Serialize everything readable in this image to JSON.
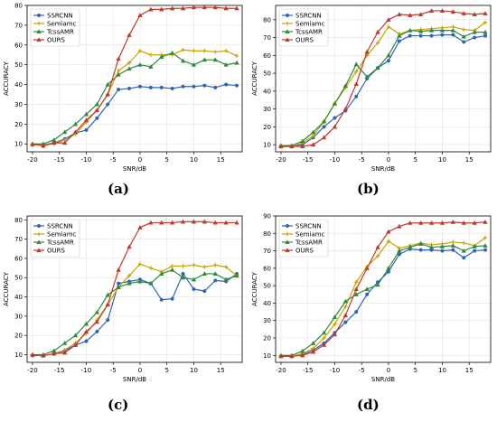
{
  "captions": [
    "(a)",
    "(b)",
    "(c)",
    "(d)"
  ],
  "colors": {
    "SSRCNN": "#2e63b8",
    "Semiamc": "#c9a400",
    "TcssAMR": "#2e8b3c",
    "OURS": "#c0392b"
  },
  "chart_data": [
    {
      "type": "line",
      "panel": "(a)",
      "xlabel": "SNR/dB",
      "ylabel": "ACCURACY",
      "xlim": [
        -21,
        19
      ],
      "ylim": [
        6,
        80
      ],
      "xticks": [
        -20,
        -15,
        -10,
        -5,
        0,
        5,
        10,
        15
      ],
      "yticks": [
        10,
        20,
        30,
        40,
        50,
        60,
        70,
        80
      ],
      "legend_position": "top-left",
      "grid": true,
      "x": [
        -20,
        -18,
        -16,
        -14,
        -12,
        -10,
        -8,
        -6,
        -4,
        -2,
        0,
        2,
        4,
        6,
        8,
        10,
        12,
        14,
        16,
        18
      ],
      "series": [
        {
          "name": "SSRCNN",
          "values": [
            9.5,
            9.5,
            10.5,
            12.5,
            15.5,
            17,
            23,
            30,
            37.5,
            38,
            39,
            38.5,
            38.5,
            38,
            39,
            39,
            39.5,
            38.5,
            40,
            39.5
          ]
        },
        {
          "name": "Semiamc",
          "values": [
            9.5,
            9.5,
            10,
            12,
            15,
            21,
            27,
            35,
            47,
            51,
            57,
            55,
            55,
            55,
            57.5,
            57,
            57,
            56.5,
            57,
            54.5
          ]
        },
        {
          "name": "TcssAMR",
          "values": [
            10,
            10,
            12,
            16,
            20,
            25,
            30,
            40,
            45,
            48,
            50,
            49,
            54,
            56,
            52,
            50,
            52.5,
            52.5,
            50,
            51
          ]
        },
        {
          "name": "OURS",
          "values": [
            10,
            9,
            10.5,
            10.5,
            16,
            22,
            27,
            35,
            53,
            65,
            75,
            78,
            78,
            78.5,
            78.5,
            79,
            79,
            79,
            78.5,
            78.5
          ]
        }
      ]
    },
    {
      "type": "line",
      "panel": "(b)",
      "xlabel": "SNR/dB",
      "ylabel": "ACCURACY",
      "xlim": [
        -21,
        19
      ],
      "ylim": [
        6,
        88
      ],
      "xticks": [
        -20,
        -15,
        -10,
        -5,
        0,
        5,
        10,
        15
      ],
      "yticks": [
        10,
        20,
        30,
        40,
        50,
        60,
        70,
        80
      ],
      "legend_position": "top-left",
      "grid": true,
      "x": [
        -20,
        -18,
        -16,
        -14,
        -12,
        -10,
        -8,
        -6,
        -4,
        -2,
        0,
        2,
        4,
        6,
        8,
        10,
        12,
        14,
        16,
        18
      ],
      "series": [
        {
          "name": "SSRCNN",
          "values": [
            9,
            9,
            10,
            14,
            20,
            25,
            29,
            37,
            47,
            53,
            57,
            68,
            71,
            71,
            71,
            71.5,
            71.5,
            67.5,
            70,
            71
          ]
        },
        {
          "name": "Semiamc",
          "values": [
            9,
            9,
            11,
            15,
            23,
            33,
            42,
            51,
            60,
            67,
            76,
            72,
            74,
            74.5,
            75,
            75.5,
            76,
            74.5,
            74,
            78.5
          ]
        },
        {
          "name": "TcssAMR",
          "values": [
            9.5,
            9.5,
            12,
            17,
            23,
            33,
            43,
            55,
            48,
            53,
            60,
            71,
            74,
            73.5,
            74,
            74,
            74,
            70.5,
            73,
            73
          ]
        },
        {
          "name": "OURS",
          "values": [
            9,
            9,
            9,
            10,
            14,
            20,
            30,
            44,
            62,
            73,
            80,
            83,
            82.5,
            83,
            85,
            85,
            84.5,
            83.5,
            83,
            83.5
          ]
        }
      ]
    },
    {
      "type": "line",
      "panel": "(c)",
      "xlabel": "SNR/dB",
      "ylabel": "ACCURACY",
      "xlim": [
        -21,
        19
      ],
      "ylim": [
        6,
        82
      ],
      "xticks": [
        -20,
        -15,
        -10,
        -5,
        0,
        5,
        10,
        15
      ],
      "yticks": [
        10,
        20,
        30,
        40,
        50,
        60,
        70,
        80
      ],
      "legend_position": "top-left",
      "grid": true,
      "x": [
        -20,
        -18,
        -16,
        -14,
        -12,
        -10,
        -8,
        -6,
        -4,
        -2,
        0,
        2,
        4,
        6,
        8,
        10,
        12,
        14,
        16,
        18
      ],
      "series": [
        {
          "name": "SSRCNN",
          "values": [
            9.5,
            9.5,
            10.5,
            12,
            15,
            17,
            22,
            28,
            47,
            48,
            49,
            47,
            38.5,
            39,
            52,
            44,
            43,
            48.5,
            48,
            52
          ]
        },
        {
          "name": "Semiamc",
          "values": [
            10,
            9.5,
            10.5,
            12.5,
            16,
            21,
            28,
            36,
            45,
            51,
            57,
            55,
            53,
            56,
            56,
            56.5,
            55.5,
            56.5,
            55.5,
            51
          ]
        },
        {
          "name": "TcssAMR",
          "values": [
            10,
            10,
            12,
            16,
            20,
            26,
            32,
            41,
            45,
            47,
            48,
            47,
            52,
            54,
            50,
            49,
            52,
            52,
            49,
            51
          ]
        },
        {
          "name": "OURS",
          "values": [
            10,
            9.5,
            10.5,
            11,
            15,
            22,
            27,
            36,
            54,
            66,
            76,
            78.5,
            78.5,
            78.5,
            79,
            79,
            79,
            78.5,
            78.5,
            78.5
          ]
        }
      ]
    },
    {
      "type": "line",
      "panel": "(d)",
      "xlabel": "SNR/dB",
      "ylabel": "ACCURACY",
      "xlim": [
        -21,
        19
      ],
      "ylim": [
        6,
        90
      ],
      "xticks": [
        -20,
        -15,
        -10,
        -5,
        0,
        5,
        10,
        15
      ],
      "yticks": [
        10,
        20,
        30,
        40,
        50,
        60,
        70,
        80,
        90
      ],
      "legend_position": "top-left",
      "grid": true,
      "x": [
        -20,
        -18,
        -16,
        -14,
        -12,
        -10,
        -8,
        -6,
        -4,
        -2,
        0,
        2,
        4,
        6,
        8,
        10,
        12,
        14,
        16,
        18
      ],
      "series": [
        {
          "name": "SSRCNN",
          "values": [
            9.5,
            9.5,
            10.5,
            13,
            17,
            23,
            29,
            35,
            45,
            52,
            58,
            68,
            71,
            70.5,
            70.5,
            70,
            70.5,
            66,
            70,
            70.5
          ]
        },
        {
          "name": "Semiamc",
          "values": [
            9.5,
            9.5,
            11,
            14,
            20,
            28,
            38,
            52,
            61,
            67,
            75.5,
            71.5,
            73,
            74.5,
            73.5,
            74,
            75,
            74.5,
            73,
            77.5
          ]
        },
        {
          "name": "TcssAMR",
          "values": [
            10,
            10,
            12.5,
            17,
            23,
            32,
            41,
            45,
            48,
            50.5,
            60,
            70,
            72,
            74,
            72,
            72.5,
            73,
            70,
            72.5,
            73
          ]
        },
        {
          "name": "OURS",
          "values": [
            9.5,
            9.5,
            10,
            12,
            16,
            22,
            33,
            48,
            60,
            72,
            81,
            84,
            86,
            86,
            86,
            86,
            86.5,
            86,
            86,
            86.5
          ]
        }
      ]
    }
  ]
}
